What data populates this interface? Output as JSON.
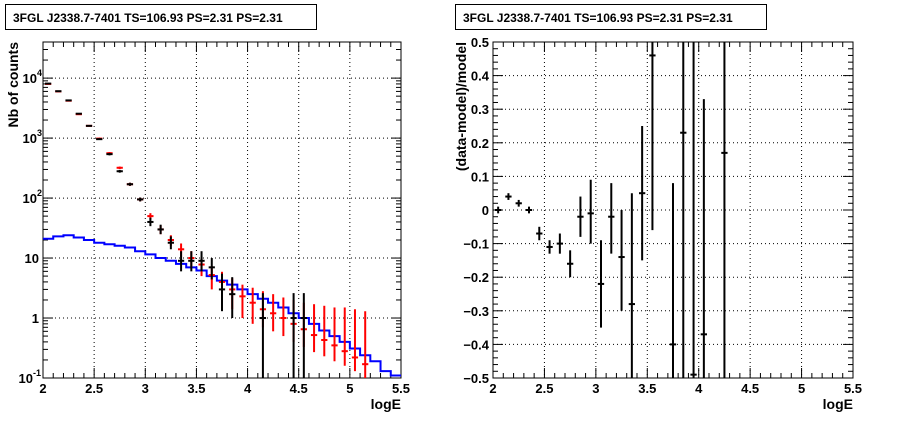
{
  "chart_data": [
    {
      "type": "line",
      "title": "3FGL J2338.7-7401 TS=106.93 PS=2.31 PS=2.31",
      "xlabel": "logE",
      "ylabel": "Nb of counts",
      "xlim": [
        2,
        5.5
      ],
      "ylim": [
        0.1,
        40000
      ],
      "yscale": "log",
      "grid": true,
      "x_ticks": [
        "2",
        "2.5",
        "3",
        "3.5",
        "4",
        "4.5",
        "5",
        "5.5"
      ],
      "y_ticks": [
        {
          "value": 0.1,
          "label": "10",
          "exp": "-1"
        },
        {
          "value": 1,
          "label": "1",
          "exp": ""
        },
        {
          "value": 10,
          "label": "10",
          "exp": ""
        },
        {
          "value": 100,
          "label": "10",
          "exp": "2"
        },
        {
          "value": 1000,
          "label": "10",
          "exp": "3"
        },
        {
          "value": 10000,
          "label": "10",
          "exp": "4"
        }
      ],
      "bin_width": 0.1,
      "series": [
        {
          "color": "#0000ff",
          "style": "step",
          "x": [
            2.05,
            2.15,
            2.25,
            2.35,
            2.45,
            2.55,
            2.65,
            2.75,
            2.85,
            2.95,
            3.05,
            3.15,
            3.25,
            3.35,
            3.45,
            3.55,
            3.65,
            3.75,
            3.85,
            3.95,
            4.05,
            4.15,
            4.25,
            4.35,
            4.45,
            4.55,
            4.65,
            4.75,
            4.85,
            4.95,
            5.05,
            5.15,
            5.25,
            5.35,
            5.45
          ],
          "values": [
            21,
            23,
            24,
            22,
            20,
            18,
            17,
            16,
            15,
            13,
            11.5,
            10,
            9,
            8,
            7,
            6.2,
            5,
            4.2,
            3.6,
            3.0,
            2.5,
            2.1,
            1.8,
            1.5,
            1.2,
            1.0,
            0.8,
            0.62,
            0.5,
            0.4,
            0.31,
            0.24,
            0.19,
            0.13,
            0.11
          ]
        },
        {
          "color": "#ff0000",
          "style": "errorbar",
          "x": [
            2.05,
            2.15,
            2.25,
            2.35,
            2.45,
            2.55,
            2.65,
            2.75,
            2.85,
            2.95,
            3.05,
            3.15,
            3.25,
            3.35,
            3.45,
            3.55,
            3.65,
            3.75,
            3.85,
            3.95,
            4.05,
            4.15,
            4.25,
            4.35,
            4.45,
            4.55,
            4.65,
            4.75,
            4.85,
            4.95,
            5.05,
            5.15
          ],
          "values": [
            8000,
            6000,
            4200,
            2500,
            1600,
            980,
            560,
            320,
            170,
            95,
            50,
            30,
            20,
            14,
            10,
            7.8,
            5.2,
            4.0,
            3.0,
            2.3,
            1.8,
            1.4,
            1.2,
            1.0,
            0.8,
            0.65,
            0.52,
            0.43,
            0.35,
            0.28,
            0.22,
            0.17
          ],
          "err_low": [
            7900,
            5900,
            4150,
            2450,
            1560,
            950,
            535,
            305,
            160,
            88,
            44,
            25,
            16,
            10.5,
            7,
            5,
            3.0,
            2.1,
            1.4,
            1.0,
            0.8,
            0.7,
            0.6,
            0.5,
            0.4,
            0.33,
            0.27,
            0.23,
            0.19,
            0.16,
            0.13,
            0.1
          ],
          "err_high": [
            8100,
            6100,
            4250,
            2550,
            1640,
            1010,
            585,
            335,
            180,
            102,
            56,
            35,
            24,
            17.5,
            13,
            10,
            7.4,
            5.9,
            4.6,
            3.6,
            3.2,
            2.8,
            2.5,
            2.2,
            2.0,
            1.8,
            1.7,
            1.6,
            1.5,
            1.5,
            1.4,
            1.3
          ]
        },
        {
          "color": "#000000",
          "style": "errorbar",
          "x": [
            2.05,
            2.15,
            2.25,
            2.35,
            2.45,
            2.55,
            2.65,
            2.75,
            2.85,
            2.95,
            3.05,
            3.15,
            3.25,
            3.35,
            3.45,
            3.55,
            3.65,
            3.75,
            3.85,
            4.15,
            4.45,
            4.55
          ],
          "values": [
            8100,
            6050,
            4250,
            2550,
            1600,
            960,
            540,
            280,
            170,
            95,
            40,
            30,
            18,
            9,
            9,
            9,
            7,
            3,
            2.5,
            1,
            1,
            1
          ],
          "err_low": [
            8000,
            5950,
            4180,
            2500,
            1560,
            930,
            515,
            265,
            160,
            88,
            34,
            25,
            14,
            6,
            6,
            6,
            4.4,
            1.3,
            1.0,
            0.1,
            0.1,
            0.1
          ],
          "err_high": [
            8200,
            6150,
            4320,
            2600,
            1640,
            990,
            565,
            295,
            180,
            102,
            47,
            36,
            23,
            13,
            13,
            13,
            10,
            5.5,
            4.8,
            2.6,
            2.6,
            2.6
          ]
        }
      ]
    },
    {
      "type": "scatter",
      "title": "3FGL J2338.7-7401 TS=106.93 PS=2.31 PS=2.31",
      "xlabel": "logE",
      "ylabel": "(data-model)/model",
      "xlim": [
        2,
        5.5
      ],
      "ylim": [
        -0.5,
        0.5
      ],
      "grid": true,
      "x_ticks": [
        "2",
        "2.5",
        "3",
        "3.5",
        "4",
        "4.5",
        "5",
        "5.5"
      ],
      "y_ticks": [
        "-0.5",
        "-0.4",
        "-0.3",
        "-0.2",
        "-0.1",
        "0",
        "0.1",
        "0.2",
        "0.3",
        "0.4",
        "0.5"
      ],
      "bin_width": 0.1,
      "series": [
        {
          "color": "#000000",
          "style": "errorbar",
          "x": [
            2.05,
            2.15,
            2.25,
            2.35,
            2.45,
            2.55,
            2.65,
            2.75,
            2.85,
            2.95,
            3.05,
            3.15,
            3.25,
            3.35,
            3.45,
            3.55,
            3.75,
            3.85,
            3.95,
            4.05,
            4.25
          ],
          "values": [
            0.0,
            0.04,
            0.02,
            0.0,
            -0.07,
            -0.11,
            -0.1,
            -0.16,
            -0.02,
            -0.01,
            -0.22,
            -0.02,
            -0.14,
            -0.28,
            0.05,
            0.46,
            -0.4,
            0.23,
            -0.49,
            -0.37,
            0.17
          ],
          "err_low": [
            -0.01,
            0.03,
            0.01,
            -0.01,
            -0.09,
            -0.13,
            -0.13,
            -0.2,
            -0.08,
            -0.1,
            -0.35,
            -0.13,
            -0.3,
            -0.6,
            -0.15,
            -0.06,
            -1.4,
            -0.6,
            -1.6,
            -0.6,
            -0.6
          ],
          "err_high": [
            0.01,
            0.05,
            0.03,
            0.01,
            -0.05,
            -0.09,
            -0.07,
            -0.12,
            0.04,
            0.09,
            -0.09,
            0.08,
            0.0,
            0.05,
            0.25,
            0.6,
            0.08,
            0.6,
            0.6,
            0.33,
            0.6
          ]
        }
      ]
    }
  ]
}
